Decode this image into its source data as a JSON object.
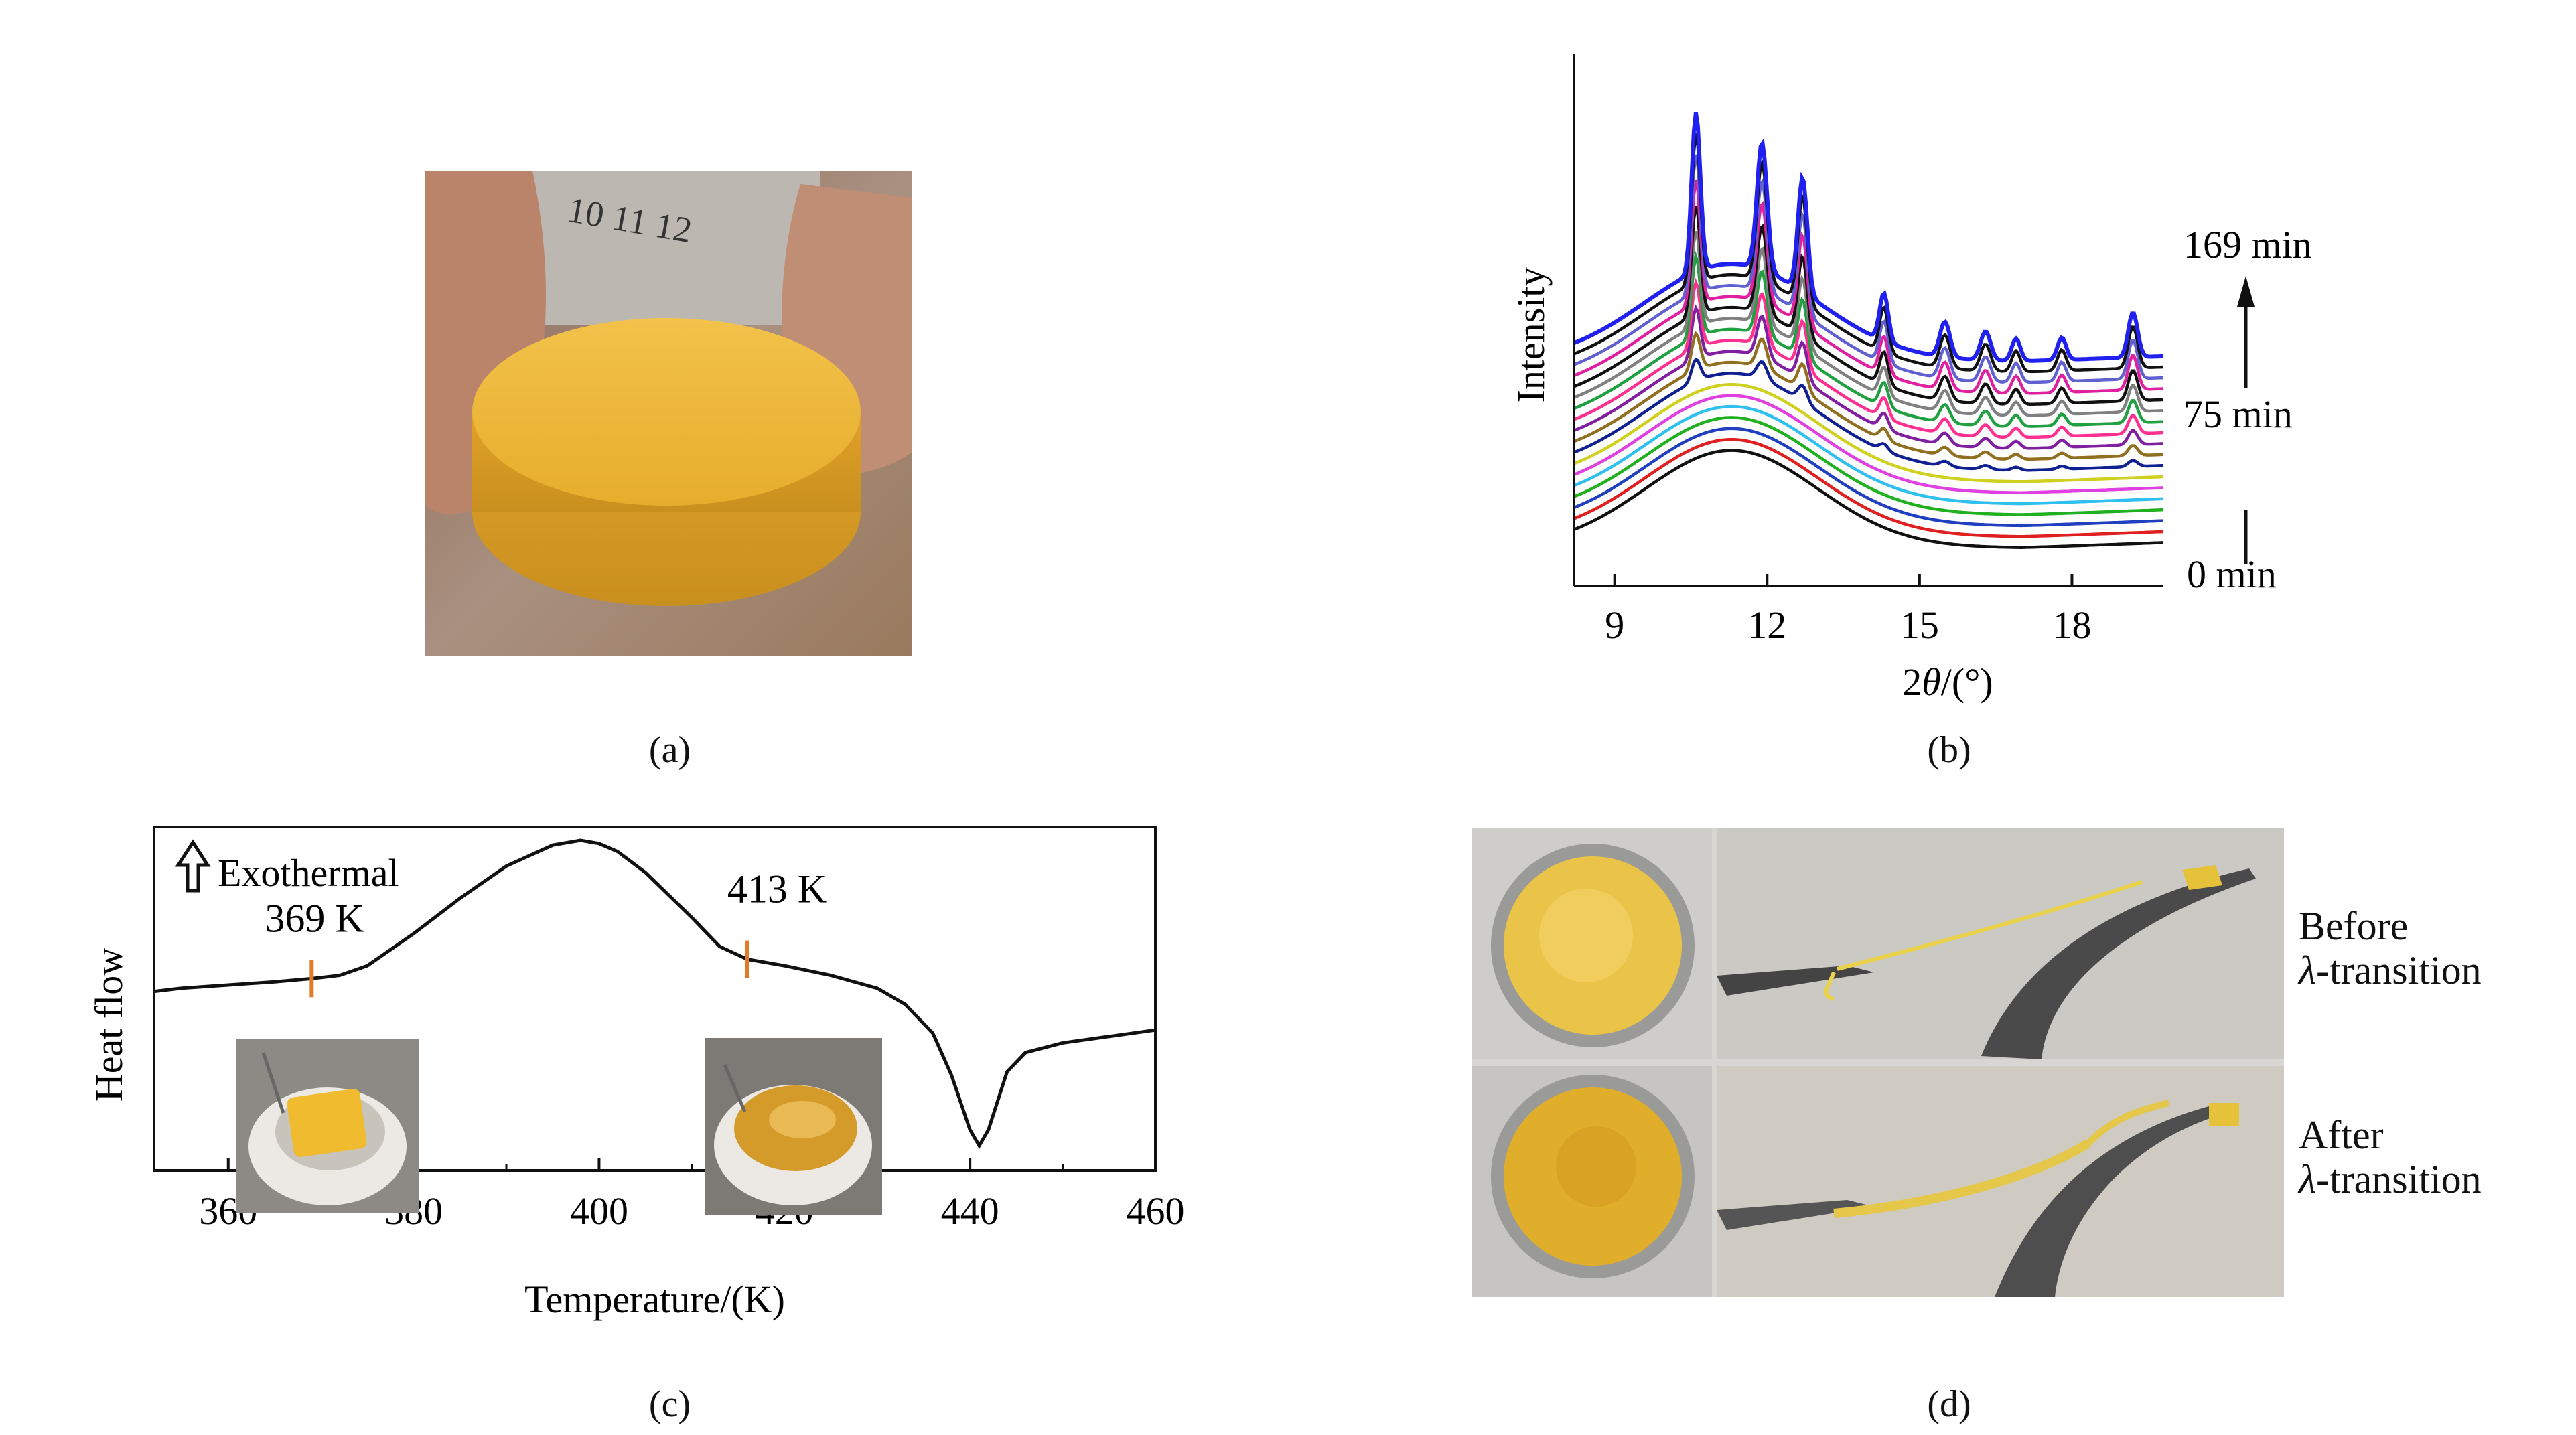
{
  "panels": {
    "a": {
      "caption": "(a)"
    },
    "b": {
      "caption": "(b)"
    },
    "c": {
      "caption": "(c)"
    },
    "d": {
      "caption": "(d)"
    }
  },
  "colors": {
    "amber": "#e0a62a",
    "skin": "#b07a62",
    "accent_orange": "#e07b2a",
    "dark_line": "#111111"
  },
  "icons": {
    "exotherm_arrow": "hollow-up-arrow-icon",
    "time_arrow": "up-arrow-icon"
  },
  "chart_data": [
    {
      "type": "line",
      "id": "xrd",
      "title": "",
      "xlabel_prefix": "2",
      "xlabel_theta": "θ",
      "xlabel_suffix": "/(°)",
      "ylabel": "Intensity",
      "xlim": [
        8.2,
        19.8
      ],
      "xticks": [
        "9",
        "12",
        "15",
        "18"
      ],
      "xtick_values": [
        9,
        12,
        15,
        18
      ],
      "legend_labels": [
        "169 min",
        "75 min",
        "0 min"
      ],
      "series_colors": [
        "#111111",
        "#e02020",
        "#2040c0",
        "#20b020",
        "#30c0f0",
        "#e040e0",
        "#d0d020",
        "#102090",
        "#907020",
        "#8020a0",
        "#ff3090",
        "#20a040",
        "#808080",
        "#111111",
        "#e020a0",
        "#6060d0",
        "#111111",
        "#2020f0"
      ],
      "series": [
        {
          "name": "0 min",
          "time_min": 0
        },
        {
          "name": "",
          "time_min": 10
        },
        {
          "name": "",
          "time_min": 20
        },
        {
          "name": "",
          "time_min": 30
        },
        {
          "name": "",
          "time_min": 40
        },
        {
          "name": "",
          "time_min": 50
        },
        {
          "name": "",
          "time_min": 60
        },
        {
          "name": "75 min",
          "time_min": 75
        },
        {
          "name": "",
          "time_min": 85
        },
        {
          "name": "",
          "time_min": 95
        },
        {
          "name": "",
          "time_min": 105
        },
        {
          "name": "",
          "time_min": 115
        },
        {
          "name": "",
          "time_min": 125
        },
        {
          "name": "",
          "time_min": 135
        },
        {
          "name": "",
          "time_min": 145
        },
        {
          "name": "",
          "time_min": 155
        },
        {
          "name": "",
          "time_min": 162
        },
        {
          "name": "169 min",
          "time_min": 169
        }
      ],
      "peaks_2theta": [
        10.6,
        11.9,
        12.7,
        14.3,
        15.5,
        16.3,
        16.9,
        17.8,
        19.2
      ]
    },
    {
      "type": "line",
      "id": "dsc",
      "title": "",
      "xlabel": "Temperature/(K)",
      "ylabel": "Heat flow",
      "xlim": [
        352,
        460
      ],
      "ylim": [
        0,
        1
      ],
      "xticks": [
        "360",
        "380",
        "400",
        "420",
        "440",
        "460"
      ],
      "xtick_values": [
        360,
        380,
        400,
        420,
        440,
        460
      ],
      "x": [
        352,
        355,
        360,
        365,
        369,
        372,
        375,
        380,
        385,
        390,
        395,
        398,
        400,
        402,
        405,
        410,
        413,
        416,
        420,
        425,
        430,
        433,
        436,
        438,
        440,
        441,
        442,
        444,
        446,
        450,
        455,
        460
      ],
      "values": [
        0.53,
        0.54,
        0.55,
        0.56,
        0.57,
        0.58,
        0.61,
        0.71,
        0.82,
        0.92,
        0.985,
        1.0,
        0.99,
        0.965,
        0.9,
        0.76,
        0.67,
        0.63,
        0.61,
        0.58,
        0.54,
        0.49,
        0.4,
        0.27,
        0.1,
        0.05,
        0.1,
        0.28,
        0.34,
        0.37,
        0.39,
        0.41
      ],
      "legend": "Exothermal",
      "annotations": [
        {
          "text": "369 K",
          "x": 369
        },
        {
          "text": "413 K",
          "x": 416
        }
      ]
    }
  ],
  "panel_d": {
    "labels": [
      {
        "line1": "Before",
        "lambda": "λ",
        "line2": "-transition"
      },
      {
        "line1": "After",
        "lambda": "λ",
        "line2": "-transition"
      }
    ]
  }
}
